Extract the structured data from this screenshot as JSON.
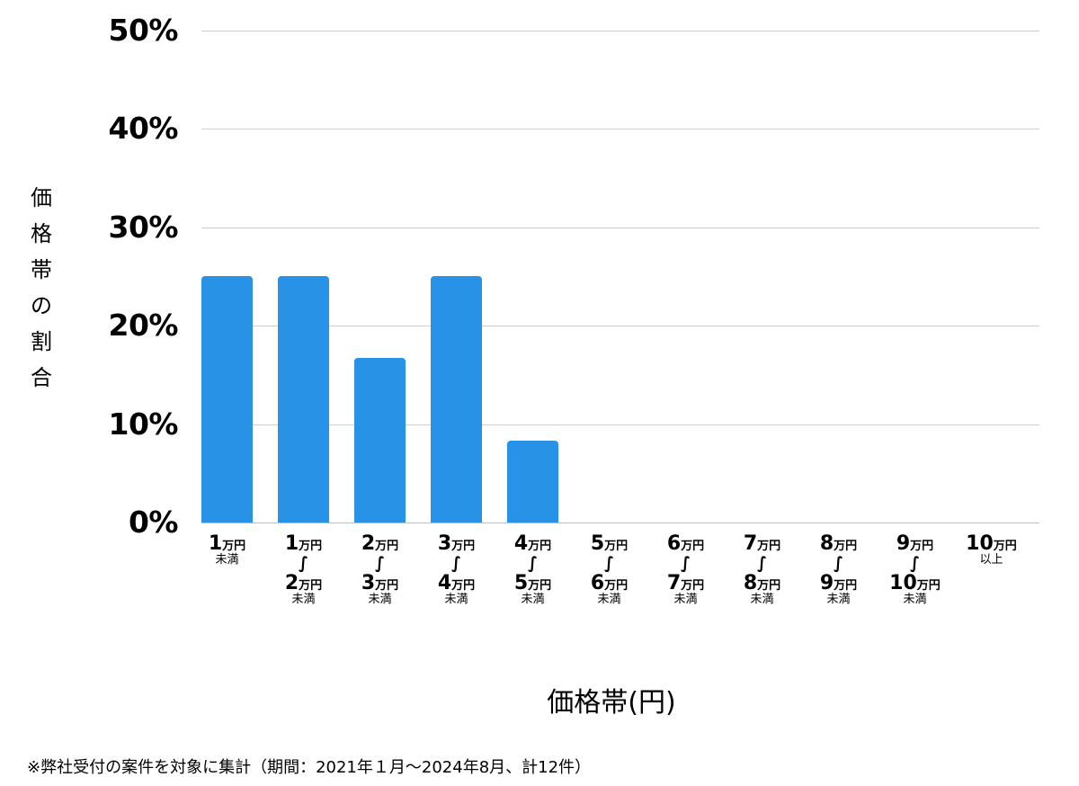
{
  "chart_data": {
    "type": "bar",
    "title": "",
    "xlabel": "価格帯(円)",
    "ylabel": "価格帯の割合",
    "ylim": [
      0,
      50
    ],
    "yticks": [
      "0%",
      "10%",
      "20%",
      "30%",
      "40%",
      "50%"
    ],
    "grid": true,
    "legend": null,
    "bar_color": "#2893e6",
    "categories": [
      "1万円未満",
      "1万円〜2万円未満",
      "2万円〜3万円未満",
      "3万円〜4万円未満",
      "4万円〜5万円未満",
      "5万円〜6万円未満",
      "6万円〜7万円未満",
      "7万円〜8万円未満",
      "8万円〜9万円未満",
      "9万円〜10万円未満",
      "10万円以上"
    ],
    "values": [
      25.0,
      25.0,
      16.7,
      25.0,
      8.3,
      0,
      0,
      0,
      0,
      0,
      0
    ],
    "unit": "%"
  },
  "axis": {
    "yticks": [
      {
        "label": "50%",
        "value": 50
      },
      {
        "label": "40%",
        "value": 40
      },
      {
        "label": "30%",
        "value": 30
      },
      {
        "label": "20%",
        "value": 20
      },
      {
        "label": "10%",
        "value": 10
      },
      {
        "label": "0%",
        "value": 0
      }
    ],
    "ylabel_chars": [
      "価",
      "格",
      "帯",
      "の",
      "割",
      "合"
    ],
    "xtitle": "価格帯(円)"
  },
  "xlabels": [
    {
      "from": "1",
      "to": null,
      "suffix": "未満",
      "unit": "万円"
    },
    {
      "from": "1",
      "to": "2",
      "suffix": "未満",
      "unit": "万円"
    },
    {
      "from": "2",
      "to": "3",
      "suffix": "未満",
      "unit": "万円"
    },
    {
      "from": "3",
      "to": "4",
      "suffix": "未満",
      "unit": "万円"
    },
    {
      "from": "4",
      "to": "5",
      "suffix": "未満",
      "unit": "万円"
    },
    {
      "from": "5",
      "to": "6",
      "suffix": "未満",
      "unit": "万円"
    },
    {
      "from": "6",
      "to": "7",
      "suffix": "未満",
      "unit": "万円"
    },
    {
      "from": "7",
      "to": "8",
      "suffix": "未満",
      "unit": "万円"
    },
    {
      "from": "8",
      "to": "9",
      "suffix": "未満",
      "unit": "万円"
    },
    {
      "from": "9",
      "to": "10",
      "suffix": "未満",
      "unit": "万円"
    },
    {
      "from": "10",
      "to": null,
      "suffix": "以上",
      "unit": "万円"
    }
  ],
  "tilde_glyph": "∫",
  "footnote": "※弊社受付の案件を対象に集計（期間：2021年１月〜2024年8月、計12件）"
}
